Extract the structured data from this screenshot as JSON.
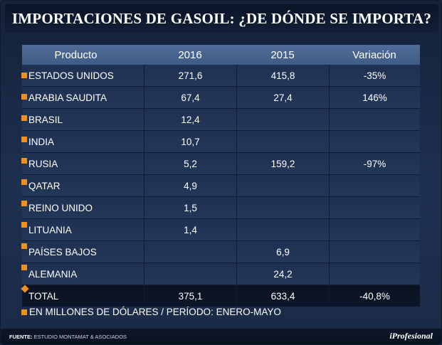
{
  "title": "IMPORTACIONES DE GASOIL: ¿DE DÓNDE SE IMPORTA?",
  "table": {
    "headers": [
      "Producto",
      "2016",
      "2015",
      "Variación"
    ],
    "rows": [
      [
        "ESTADOS UNIDOS",
        "271,6",
        "415,8",
        "-35%"
      ],
      [
        "ARABIA SAUDITA",
        "67,4",
        "27,4",
        "146%"
      ],
      [
        "BRASIL",
        "12,4",
        "",
        ""
      ],
      [
        "INDIA",
        "10,7",
        "",
        ""
      ],
      [
        "RUSIA",
        "5,2",
        "159,2",
        "-97%"
      ],
      [
        "QATAR",
        "4,9",
        "",
        ""
      ],
      [
        "REINO UNIDO",
        "1,5",
        "",
        ""
      ],
      [
        "LITUANIA",
        "1,4",
        "",
        ""
      ],
      [
        "PAÍSES BAJOS",
        "",
        "6,9",
        ""
      ],
      [
        "ALEMANIA",
        "",
        "24,2",
        ""
      ]
    ],
    "total": [
      "TOTAL",
      "375,1",
      "633,4",
      "-40,8%"
    ]
  },
  "note": "EN  MILLONES DE DÓLARES / PERÍODO: ENERO-MAYO",
  "footer": {
    "source_label": "FUENTE:",
    "source_text": "ESTUDIO MONTAMAT & ASOCIADOS",
    "brand": "iProfesional"
  },
  "colors": {
    "accent": "#f0901e",
    "header_bg": "#4f6d98",
    "background": "#1b2a44"
  }
}
